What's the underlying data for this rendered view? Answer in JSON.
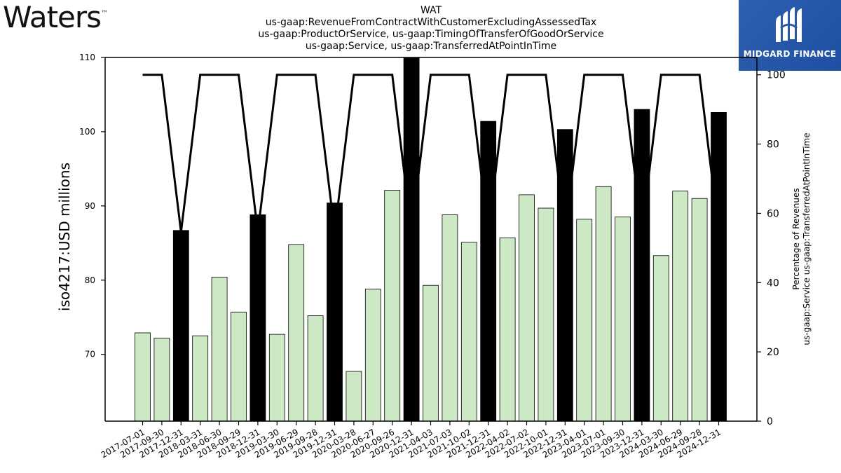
{
  "brand": {
    "name": "Waters",
    "tm": "™"
  },
  "badge": {
    "text": "MIDGARD FINANCE",
    "color": "#2857ab"
  },
  "chart_data": {
    "type": "bar",
    "title": [
      "WAT",
      "us-gaap:RevenueFromContractWithCustomerExcludingAssessedTax",
      "us-gaap:ProductOrService, us-gaap:TimingOfTransferOfGoodOrService",
      "us-gaap:Service, us-gaap:TransferredAtPointInTime"
    ],
    "ylabel": "iso4217:USD  millions",
    "y2label": [
      "Percentage of Revenues",
      "us-gaap:Service us-gaap:TransferredAtPointInTime"
    ],
    "ylim": [
      61,
      110
    ],
    "y2lim": [
      0,
      105
    ],
    "yticks": [
      70,
      80,
      90,
      100,
      110
    ],
    "y2ticks": [
      0,
      20,
      40,
      60,
      80,
      100
    ],
    "categories": [
      "2017-07-01",
      "2017-09-30",
      "2017-12-31",
      "2018-03-31",
      "2018-06-30",
      "2018-09-29",
      "2018-12-31",
      "2019-03-30",
      "2019-06-29",
      "2019-09-28",
      "2019-12-31",
      "2020-03-28",
      "2020-06-27",
      "2020-09-26",
      "2020-12-31",
      "2021-04-03",
      "2021-07-03",
      "2021-10-02",
      "2021-12-31",
      "2022-04-02",
      "2022-07-02",
      "2022-10-01",
      "2022-12-31",
      "2023-04-01",
      "2023-07-01",
      "2023-09-30",
      "2023-12-31",
      "2024-03-30",
      "2024-06-29",
      "2024-09-28",
      "2024-12-31"
    ],
    "values": [
      72.9,
      72.2,
      86.7,
      72.5,
      80.4,
      75.7,
      88.8,
      72.7,
      84.8,
      75.2,
      90.4,
      67.7,
      78.8,
      92.1,
      110.0,
      79.3,
      88.8,
      85.1,
      101.4,
      85.7,
      91.5,
      89.7,
      100.3,
      88.2,
      92.6,
      88.5,
      103.0,
      83.3,
      92.0,
      91.0,
      102.6
    ],
    "annual": [
      false,
      false,
      true,
      false,
      false,
      false,
      true,
      false,
      false,
      false,
      true,
      false,
      false,
      false,
      true,
      false,
      false,
      false,
      true,
      false,
      false,
      false,
      true,
      false,
      false,
      false,
      true,
      false,
      false,
      false,
      true
    ],
    "percentage": [
      100,
      100,
      null,
      100,
      100,
      100,
      null,
      100,
      100,
      100,
      null,
      100,
      100,
      100,
      null,
      100,
      100,
      100,
      null,
      100,
      100,
      100,
      null,
      100,
      100,
      100,
      null,
      100,
      100,
      100,
      null
    ],
    "colors": {
      "quarter_bar": "#cde8c5",
      "annual_bar": "#000000",
      "line": "#000000"
    },
    "grid": false
  }
}
